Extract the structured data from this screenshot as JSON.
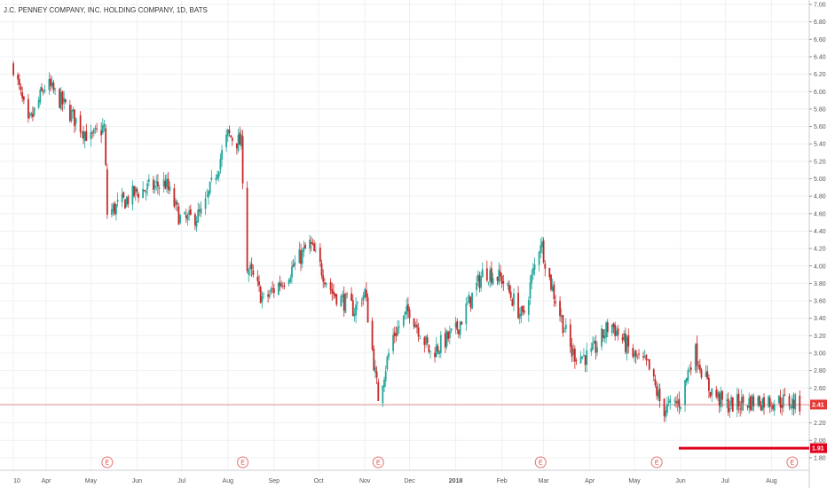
{
  "chart_data": {
    "type": "candlestick",
    "title": "J.C. PENNEY COMPANY, INC. HOLDING COMPANY, 1D, BATS",
    "x_ticks": [
      "10",
      "Apr",
      "May",
      "Jun",
      "Jul",
      "Aug",
      "Sep",
      "Oct",
      "Nov",
      "Dec",
      "2018",
      "Feb",
      "Mar",
      "Apr",
      "May",
      "Jun",
      "Jul",
      "Aug"
    ],
    "y_ticks": [
      "7.00",
      "6.80",
      "6.60",
      "6.40",
      "6.20",
      "6.00",
      "5.80",
      "5.60",
      "5.40",
      "5.20",
      "5.00",
      "4.80",
      "4.60",
      "4.40",
      "4.20",
      "4.00",
      "3.80",
      "3.60",
      "3.40",
      "3.20",
      "3.00",
      "2.80",
      "2.60",
      "2.40",
      "2.20",
      "2.00",
      "1.80"
    ],
    "y_range": [
      1.7,
      7.0
    ],
    "grid": true,
    "price_line": {
      "label": "2.41",
      "value": 2.41,
      "color": "#e57373"
    },
    "target_line": {
      "label": "1.91",
      "value": 1.91,
      "color": "#e0001b"
    },
    "earnings_marker": "E",
    "earnings_dates": [
      "2017-05-12",
      "2017-08-11",
      "2017-11-10",
      "2018-02-27",
      "2018-05-16",
      "2018-08-15"
    ],
    "up_color": "#26a69a",
    "down_color": "#c62828",
    "key_prices": [
      {
        "date": "2017-03-10",
        "value": 6.3
      },
      {
        "date": "2017-03-20",
        "value": 5.6
      },
      {
        "date": "2017-04-01",
        "value": 6.1
      },
      {
        "date": "2017-04-15",
        "value": 5.8
      },
      {
        "date": "2017-05-01",
        "value": 5.45
      },
      {
        "date": "2017-05-10",
        "value": 5.6
      },
      {
        "date": "2017-05-12",
        "value": 4.6
      },
      {
        "date": "2017-06-01",
        "value": 4.85
      },
      {
        "date": "2017-06-20",
        "value": 4.95
      },
      {
        "date": "2017-07-01",
        "value": 4.5
      },
      {
        "date": "2017-07-15",
        "value": 4.6
      },
      {
        "date": "2017-08-01",
        "value": 5.5
      },
      {
        "date": "2017-08-10",
        "value": 5.4
      },
      {
        "date": "2017-08-14",
        "value": 4.0
      },
      {
        "date": "2017-08-25",
        "value": 3.6
      },
      {
        "date": "2017-09-10",
        "value": 3.9
      },
      {
        "date": "2017-09-25",
        "value": 4.25
      },
      {
        "date": "2017-10-10",
        "value": 3.7
      },
      {
        "date": "2017-10-25",
        "value": 3.5
      },
      {
        "date": "2017-11-01",
        "value": 3.7
      },
      {
        "date": "2017-11-10",
        "value": 2.5
      },
      {
        "date": "2017-11-20",
        "value": 3.2
      },
      {
        "date": "2017-12-01",
        "value": 3.5
      },
      {
        "date": "2017-12-15",
        "value": 3.0
      },
      {
        "date": "2018-01-01",
        "value": 3.25
      },
      {
        "date": "2018-01-20",
        "value": 3.95
      },
      {
        "date": "2018-02-01",
        "value": 3.85
      },
      {
        "date": "2018-02-15",
        "value": 3.4
      },
      {
        "date": "2018-02-27",
        "value": 4.3
      },
      {
        "date": "2018-03-05",
        "value": 3.85
      },
      {
        "date": "2018-03-20",
        "value": 3.0
      },
      {
        "date": "2018-04-01",
        "value": 2.95
      },
      {
        "date": "2018-04-15",
        "value": 3.35
      },
      {
        "date": "2018-05-01",
        "value": 2.95
      },
      {
        "date": "2018-05-10",
        "value": 2.85
      },
      {
        "date": "2018-05-20",
        "value": 2.35
      },
      {
        "date": "2018-06-01",
        "value": 2.45
      },
      {
        "date": "2018-06-10",
        "value": 3.05
      },
      {
        "date": "2018-06-20",
        "value": 2.6
      },
      {
        "date": "2018-07-01",
        "value": 2.4
      },
      {
        "date": "2018-07-20",
        "value": 2.45
      },
      {
        "date": "2018-08-10",
        "value": 2.45
      },
      {
        "date": "2018-08-20",
        "value": 2.41
      }
    ]
  }
}
